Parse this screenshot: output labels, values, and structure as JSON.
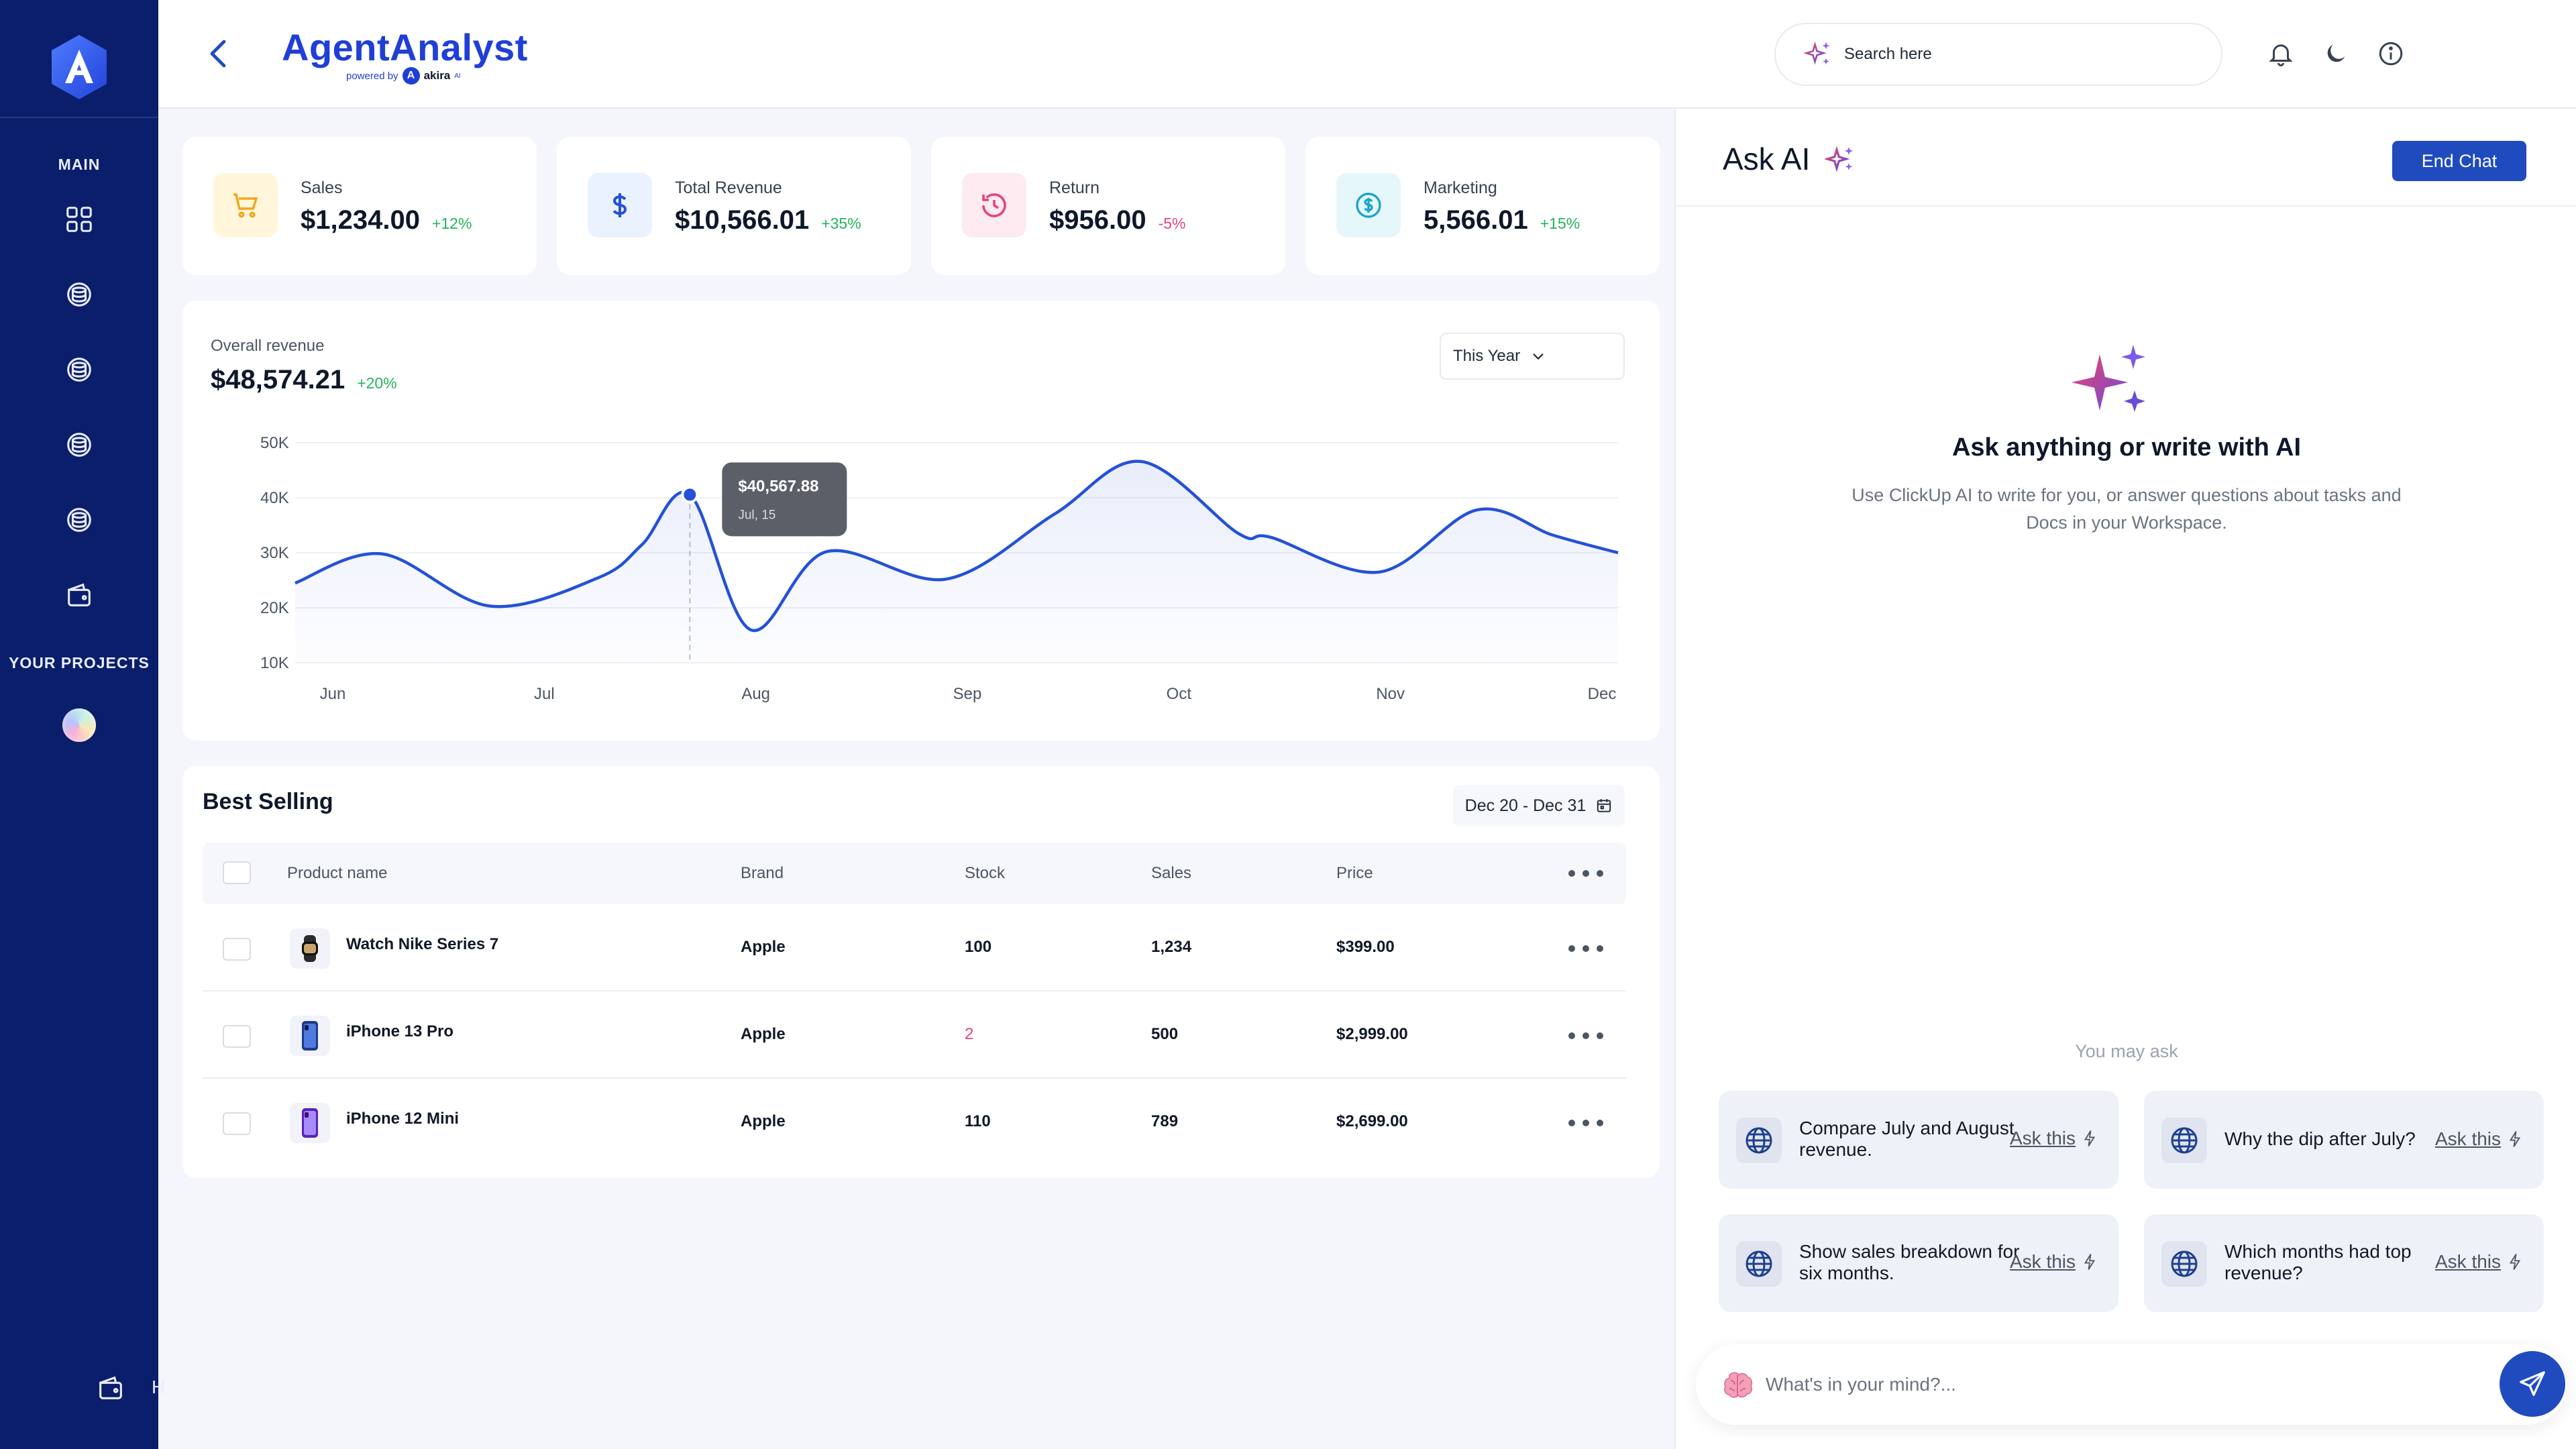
{
  "sidebar": {
    "logo": "A",
    "main_label": "MAIN",
    "projects_label": "YOUR PROJECTS",
    "bottom_text": "H"
  },
  "header": {
    "title": "AgentAnalyst",
    "powered_by": "powered by",
    "powered_brand": "akira",
    "powered_sup": "AI",
    "search_placeholder": "Search here"
  },
  "kpis": [
    {
      "label": "Sales",
      "value": "$1,234.00",
      "delta": "+12%"
    },
    {
      "label": "Total Revenue",
      "value": "$10,566.01",
      "delta": "+35%"
    },
    {
      "label": "Return",
      "value": "$956.00",
      "delta": "-5%"
    },
    {
      "label": "Marketing",
      "value": "5,566.01",
      "delta": "+15%"
    }
  ],
  "revenue": {
    "label": "Overall revenue",
    "value": "$48,574.21",
    "delta": "+20%",
    "period": "This Year"
  },
  "chart_data": {
    "type": "line",
    "title": "Overall revenue",
    "x_labels": [
      "Jun",
      "Jul",
      "Aug",
      "Sep",
      "Oct",
      "Nov",
      "Dec"
    ],
    "y_ticks": [
      "50K",
      "40K",
      "30K",
      "20K",
      "10K"
    ],
    "ylim": [
      10000,
      50000
    ],
    "series": [
      {
        "name": "Revenue",
        "points": [
          [
            0.0,
            24500
          ],
          [
            0.4,
            29800
          ],
          [
            0.9,
            20300
          ],
          [
            1.4,
            25500
          ],
          [
            1.6,
            31500
          ],
          [
            1.82,
            40567.88
          ],
          [
            2.1,
            16000
          ],
          [
            2.45,
            30200
          ],
          [
            3.0,
            25200
          ],
          [
            3.5,
            37000
          ],
          [
            3.9,
            46600
          ],
          [
            4.35,
            33500
          ],
          [
            4.5,
            32800
          ],
          [
            5.0,
            26500
          ],
          [
            5.45,
            37800
          ],
          [
            5.8,
            33200
          ],
          [
            6.1,
            30000
          ]
        ]
      }
    ],
    "tooltip": {
      "value": "$40,567.88",
      "label": "Jul, 15",
      "x": 1.82,
      "y": 40567.88
    },
    "grid": true
  },
  "best_selling": {
    "title": "Best Selling",
    "date_range": "Dec 20 - Dec 31",
    "columns": [
      "Product name",
      "Brand",
      "Stock",
      "Sales",
      "Price"
    ],
    "rows": [
      {
        "product": "Watch Nike Series 7",
        "brand": "Apple",
        "stock": "100",
        "sales": "1,234",
        "price": "$399.00"
      },
      {
        "product": "iPhone 13 Pro",
        "brand": "Apple",
        "stock": "2",
        "sales": "500",
        "price": "$2,999.00"
      },
      {
        "product": "iPhone 12 Mini",
        "brand": "Apple",
        "stock": "110",
        "sales": "789",
        "price": "$2,699.00"
      }
    ]
  },
  "ai": {
    "title": "Ask AI",
    "end_chat": "End Chat",
    "hero_title": "Ask anything or write with AI",
    "hero_desc": "Use ClickUp AI to write for you, or answer questions about tasks and Docs in your Workspace.",
    "may_ask": "You may ask",
    "ask_label": "Ask this",
    "suggestions": [
      "Compare July and August revenue.",
      "Why the dip after July?",
      "Show sales breakdown for six months.",
      "Which months had top revenue?"
    ],
    "input_placeholder": "What's in your mind?..."
  },
  "colors": {
    "sidebar": "#0a1e6b",
    "accent": "#1f4bbf",
    "line": "#2451d6",
    "positive": "#22b35e",
    "negative": "#e6457a"
  }
}
